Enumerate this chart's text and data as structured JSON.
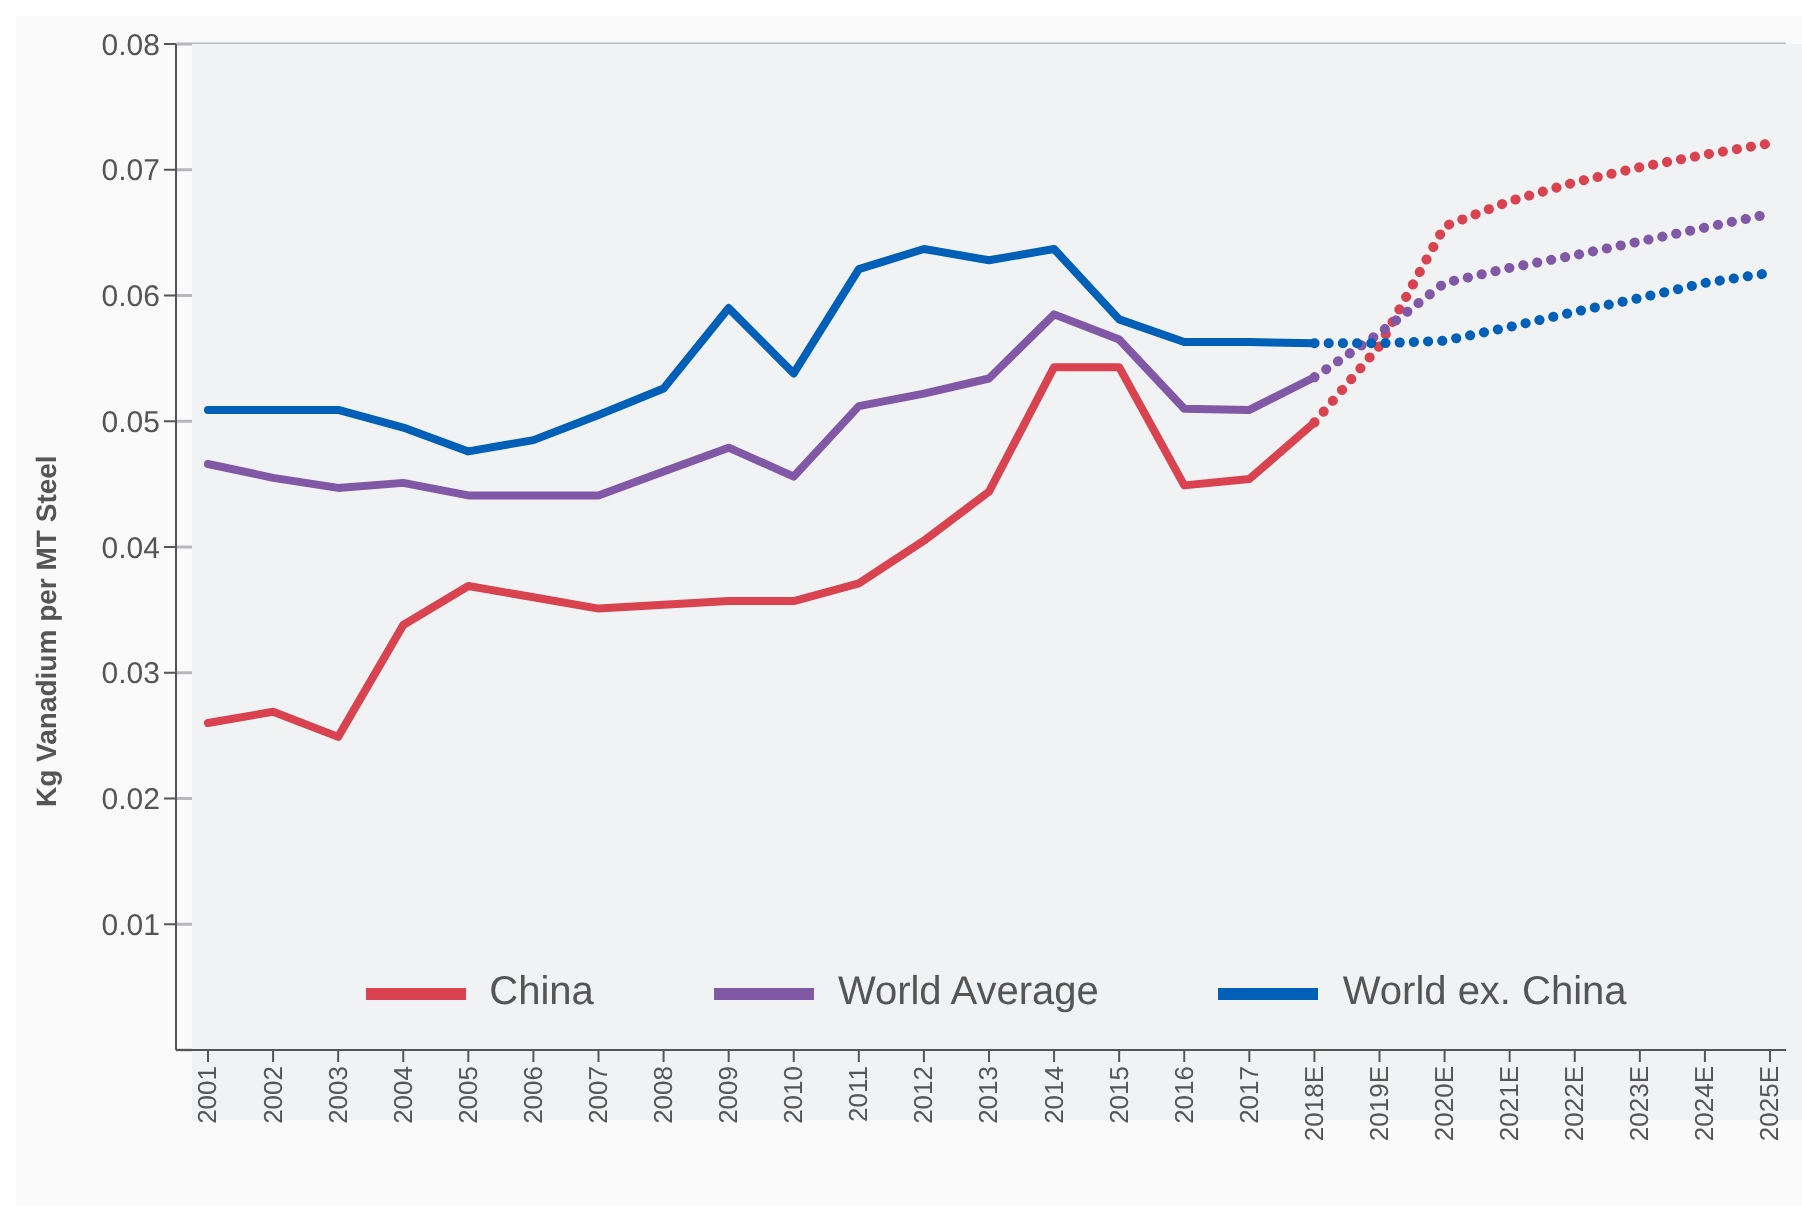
{
  "chart_data": {
    "type": "line",
    "ylabel": "Kg Vanadium per MT Steel",
    "categories": [
      "2001",
      "2002",
      "2003",
      "2004",
      "2005",
      "2006",
      "2007",
      "2008",
      "2009",
      "2010",
      "2011",
      "2012",
      "2013",
      "2014",
      "2015",
      "2016",
      "2017",
      "2018E",
      "2019E",
      "2020E",
      "2021E",
      "2022E",
      "2023E",
      "2024E",
      "2025E"
    ],
    "series": [
      {
        "name": "China",
        "color": "#d9434f",
        "line_style": "solid",
        "values": [
          0.026,
          0.0269,
          0.0249,
          0.0338,
          0.0369,
          0.036,
          0.0351,
          0.0354,
          0.0357,
          0.0357,
          0.0371,
          0.0405,
          0.0444,
          0.0543,
          0.0543,
          0.0449,
          0.0454,
          0.0499,
          null,
          null,
          null,
          null,
          null,
          null,
          null
        ]
      },
      {
        "name": "World Average",
        "color": "#8058a6",
        "line_style": "solid",
        "values": [
          0.0466,
          0.0455,
          0.0447,
          0.0451,
          0.0441,
          0.0441,
          0.0441,
          0.046,
          0.0479,
          0.0456,
          0.0512,
          0.0522,
          0.0534,
          0.0585,
          0.0565,
          0.051,
          0.0509,
          0.0535,
          null,
          null,
          null,
          null,
          null,
          null,
          null
        ]
      },
      {
        "name": "World ex. China",
        "color": "#0060b8",
        "line_style": "solid",
        "values": [
          0.0509,
          0.0509,
          0.0509,
          0.0495,
          0.0476,
          0.0485,
          0.0505,
          0.0526,
          0.059,
          0.0538,
          0.0621,
          0.0637,
          0.0628,
          0.0637,
          0.0581,
          0.0563,
          0.0563,
          0.0562,
          null,
          null,
          null,
          null,
          null,
          null,
          null
        ]
      },
      {
        "color": "#d9434f",
        "line_style": "dotted",
        "values": [
          null,
          null,
          null,
          null,
          null,
          null,
          null,
          null,
          null,
          null,
          null,
          null,
          null,
          null,
          null,
          null,
          null,
          0.0499,
          0.056,
          0.0655,
          0.0675,
          0.069,
          0.0702,
          0.0712,
          0.0721
        ]
      },
      {
        "color": "#8058a6",
        "line_style": "dotted",
        "values": [
          null,
          null,
          null,
          null,
          null,
          null,
          null,
          null,
          null,
          null,
          null,
          null,
          null,
          null,
          null,
          null,
          null,
          0.0535,
          0.057,
          0.061,
          0.0622,
          0.0632,
          0.0643,
          0.0654,
          0.0665
        ]
      },
      {
        "color": "#0060b8",
        "line_style": "dotted",
        "values": [
          null,
          null,
          null,
          null,
          null,
          null,
          null,
          null,
          null,
          null,
          null,
          null,
          null,
          null,
          null,
          null,
          null,
          0.0562,
          0.0562,
          0.0564,
          0.0575,
          0.0587,
          0.0598,
          0.061,
          0.0618
        ]
      }
    ],
    "ylim": [
      0,
      0.08
    ],
    "yticks": [
      0.01,
      0.02,
      0.03,
      0.04,
      0.05,
      0.06,
      0.07,
      0.08
    ],
    "grid": "y",
    "legend": "bottom",
    "marker": "none"
  }
}
